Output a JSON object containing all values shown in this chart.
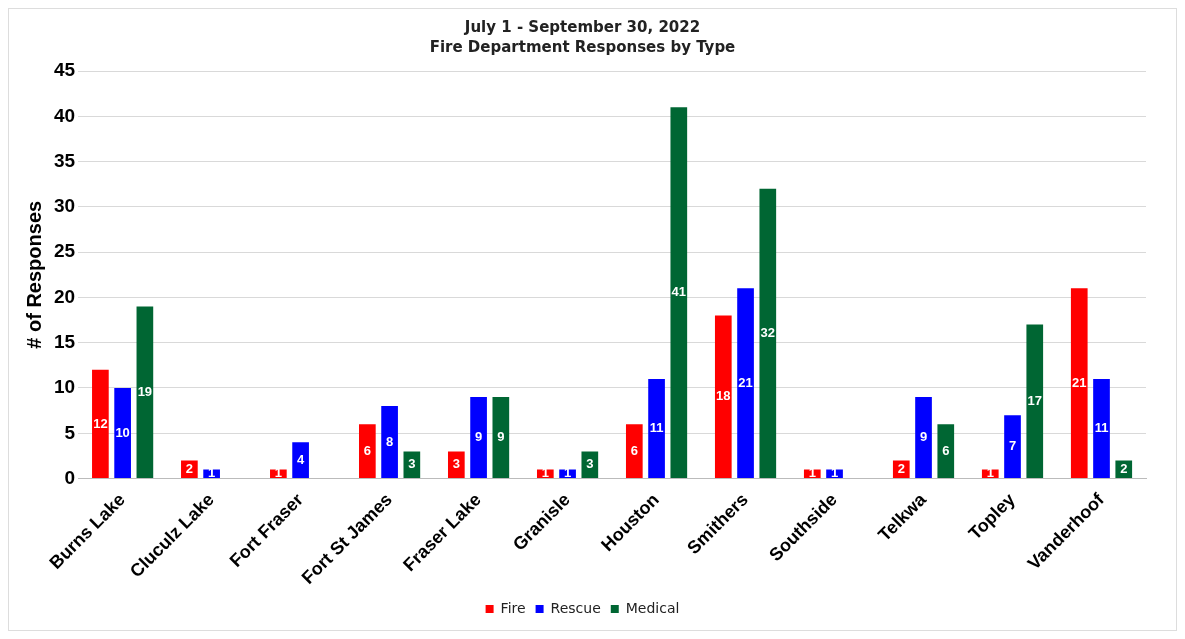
{
  "chart_data": {
    "type": "bar",
    "title": "July 1 - September 30, 2022",
    "subtitle": "Fire Department Responses by Type",
    "ylabel": "# of Responses",
    "categories": [
      "Burns Lake",
      "Cluculz Lake",
      "Fort Fraser",
      "Fort St James",
      "Fraser Lake",
      "Granisle",
      "Houston",
      "Smithers",
      "Southside",
      "Telkwa",
      "Topley",
      "Vanderhoof"
    ],
    "series": [
      {
        "name": "Fire",
        "color": "#ff0000",
        "values": [
          12,
          2,
          1,
          6,
          3,
          1,
          6,
          18,
          1,
          2,
          1,
          21
        ],
        "value_labels": [
          "12",
          "2",
          "1",
          "6",
          "3",
          "1",
          "6",
          "18",
          "1",
          "2",
          "1",
          "21"
        ]
      },
      {
        "name": "Rescue",
        "color": "#0000ff",
        "values": [
          10,
          1,
          4,
          8,
          9,
          1,
          11,
          21,
          1,
          9,
          7,
          11
        ],
        "value_labels": [
          "10",
          "1",
          "4",
          "8",
          "9",
          "1",
          "11",
          "21",
          "1",
          "9",
          "7",
          "11"
        ]
      },
      {
        "name": "Medical",
        "color": "#006633",
        "values": [
          19,
          0,
          0,
          3,
          9,
          3,
          41,
          32,
          0,
          6,
          17,
          2
        ],
        "value_labels": [
          "19",
          null,
          null,
          "3",
          "9",
          "3",
          "41",
          "32",
          null,
          "6",
          "17",
          "2"
        ]
      }
    ],
    "ylim": [
      0,
      45
    ],
    "yticks": [
      0,
      5,
      10,
      15,
      20,
      25,
      30,
      35,
      40,
      45
    ],
    "grid": "y",
    "legend": "bottom"
  }
}
